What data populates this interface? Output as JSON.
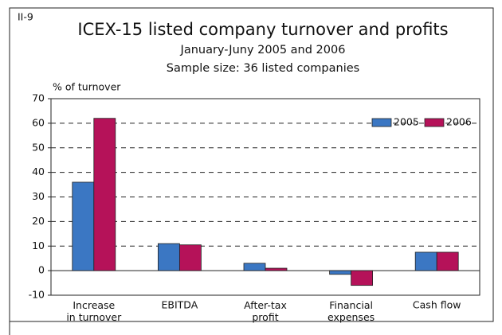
{
  "chart_data": {
    "type": "bar",
    "label": "II-9",
    "title": "ICEX-15 listed company turnover and profits",
    "subtitle": [
      "January-Juny 2005 and 2006",
      "Sample size: 36 listed companies"
    ],
    "y_label": "% of turnover",
    "categories": [
      "Increase\nin turnover",
      "EBITDA",
      "After-tax\nprofit",
      "Financial\nexpenses",
      "Cash flow"
    ],
    "series": [
      {
        "name": "2005",
        "color": "#3b77c3",
        "values": [
          36,
          11,
          3,
          -1.5,
          7.5
        ]
      },
      {
        "name": "2006",
        "color": "#b51259",
        "values": [
          62,
          10.5,
          1,
          -6,
          7.5
        ]
      }
    ],
    "ylim": [
      -10,
      70
    ],
    "yticks": [
      -10,
      0,
      10,
      20,
      30,
      40,
      50,
      60,
      70
    ],
    "grid": true,
    "legend": "top-right"
  }
}
